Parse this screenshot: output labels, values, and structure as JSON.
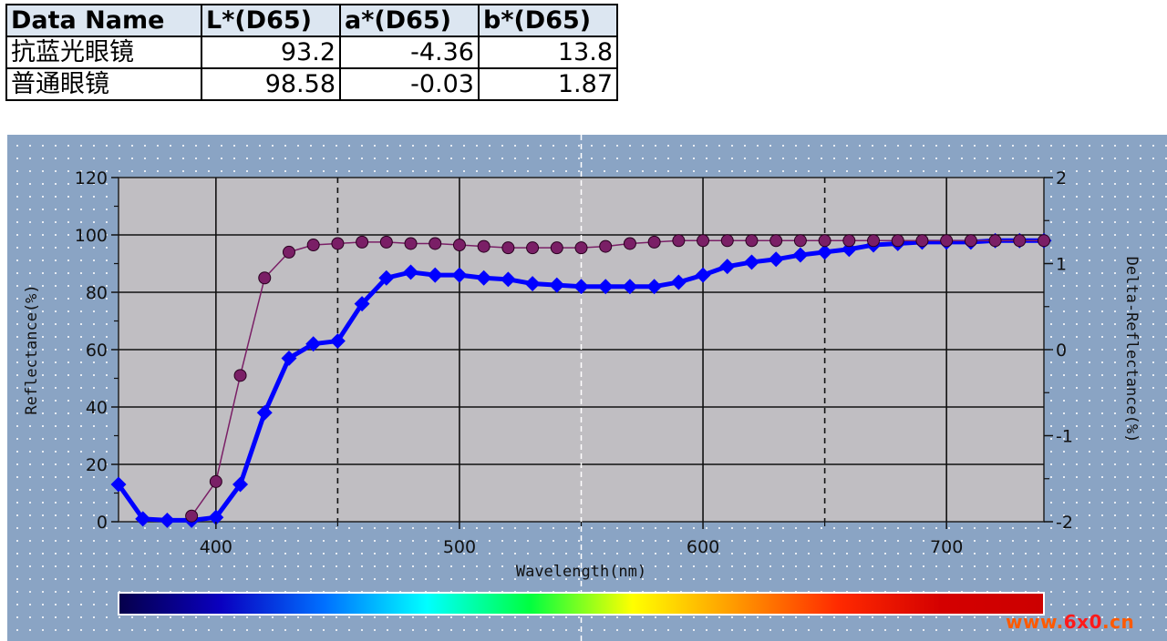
{
  "table": {
    "headers": [
      "Data Name",
      "L*(D65)",
      "a*(D65)",
      "b*(D65)"
    ],
    "rows": [
      [
        "抗蓝光眼镜",
        "93.2",
        "-4.36",
        "13.8"
      ],
      [
        "普通眼镜",
        "98.58",
        "-0.03",
        "1.87"
      ]
    ]
  },
  "chart_data": {
    "type": "line",
    "title": "",
    "xlabel": "Wavelength(nm)",
    "ylabel": "Reflectance(%)",
    "y2label": "Delta-Reflectance(%)",
    "xlim": [
      360,
      740
    ],
    "ylim": [
      0,
      120
    ],
    "y2lim": [
      -2,
      2
    ],
    "xticks": [
      "400",
      "500",
      "600",
      "700"
    ],
    "yticks": [
      "0",
      "20",
      "40",
      "60",
      "80",
      "100",
      "120"
    ],
    "y2ticks": [
      "-2",
      "-1",
      "0",
      "1",
      "2"
    ],
    "grid": true,
    "series": [
      {
        "color": "#0000ff",
        "x": [
          360,
          370,
          380,
          390,
          400,
          410,
          420,
          430,
          440,
          450,
          460,
          470,
          480,
          490,
          500,
          510,
          520,
          530,
          540,
          550,
          560,
          570,
          580,
          590,
          600,
          610,
          620,
          630,
          640,
          650,
          660,
          670,
          680,
          690,
          700,
          710,
          720,
          730,
          740
        ],
        "y": [
          13,
          1,
          0.5,
          0.5,
          1.5,
          13,
          38,
          57,
          62,
          63,
          76,
          85,
          87,
          86,
          86,
          85,
          84.5,
          83,
          82.5,
          82,
          82,
          82,
          82,
          83.5,
          86,
          89,
          90.5,
          91.5,
          93,
          94,
          95,
          96.5,
          97,
          97.5,
          97.5,
          97.5,
          98,
          98,
          98
        ]
      },
      {
        "color": "#7a1f66",
        "x": [
          390,
          400,
          410,
          420,
          430,
          440,
          450,
          460,
          470,
          480,
          490,
          500,
          510,
          520,
          530,
          540,
          550,
          560,
          570,
          580,
          590,
          600,
          610,
          620,
          630,
          640,
          650,
          660,
          670,
          680,
          690,
          700,
          710,
          720,
          730,
          740
        ],
        "y": [
          2,
          14,
          51,
          85,
          94,
          96.5,
          97,
          97.5,
          97.5,
          97,
          97,
          96.5,
          96,
          95.5,
          95.5,
          95.5,
          95.5,
          96,
          97,
          97.5,
          98,
          98,
          98,
          98,
          98,
          98,
          98,
          98,
          98,
          98,
          98,
          98,
          98,
          98,
          98,
          98
        ]
      }
    ]
  },
  "colorbar": {
    "stops": [
      "#05004a",
      "#0a00c0",
      "#0070ff",
      "#00ffff",
      "#00ff40",
      "#ffff00",
      "#ff9900",
      "#ff2a00",
      "#d40000",
      "#cc0000"
    ]
  },
  "watermark": {
    "text_a": "www.",
    "text_b": "6x0",
    "text_c": ".cn"
  }
}
